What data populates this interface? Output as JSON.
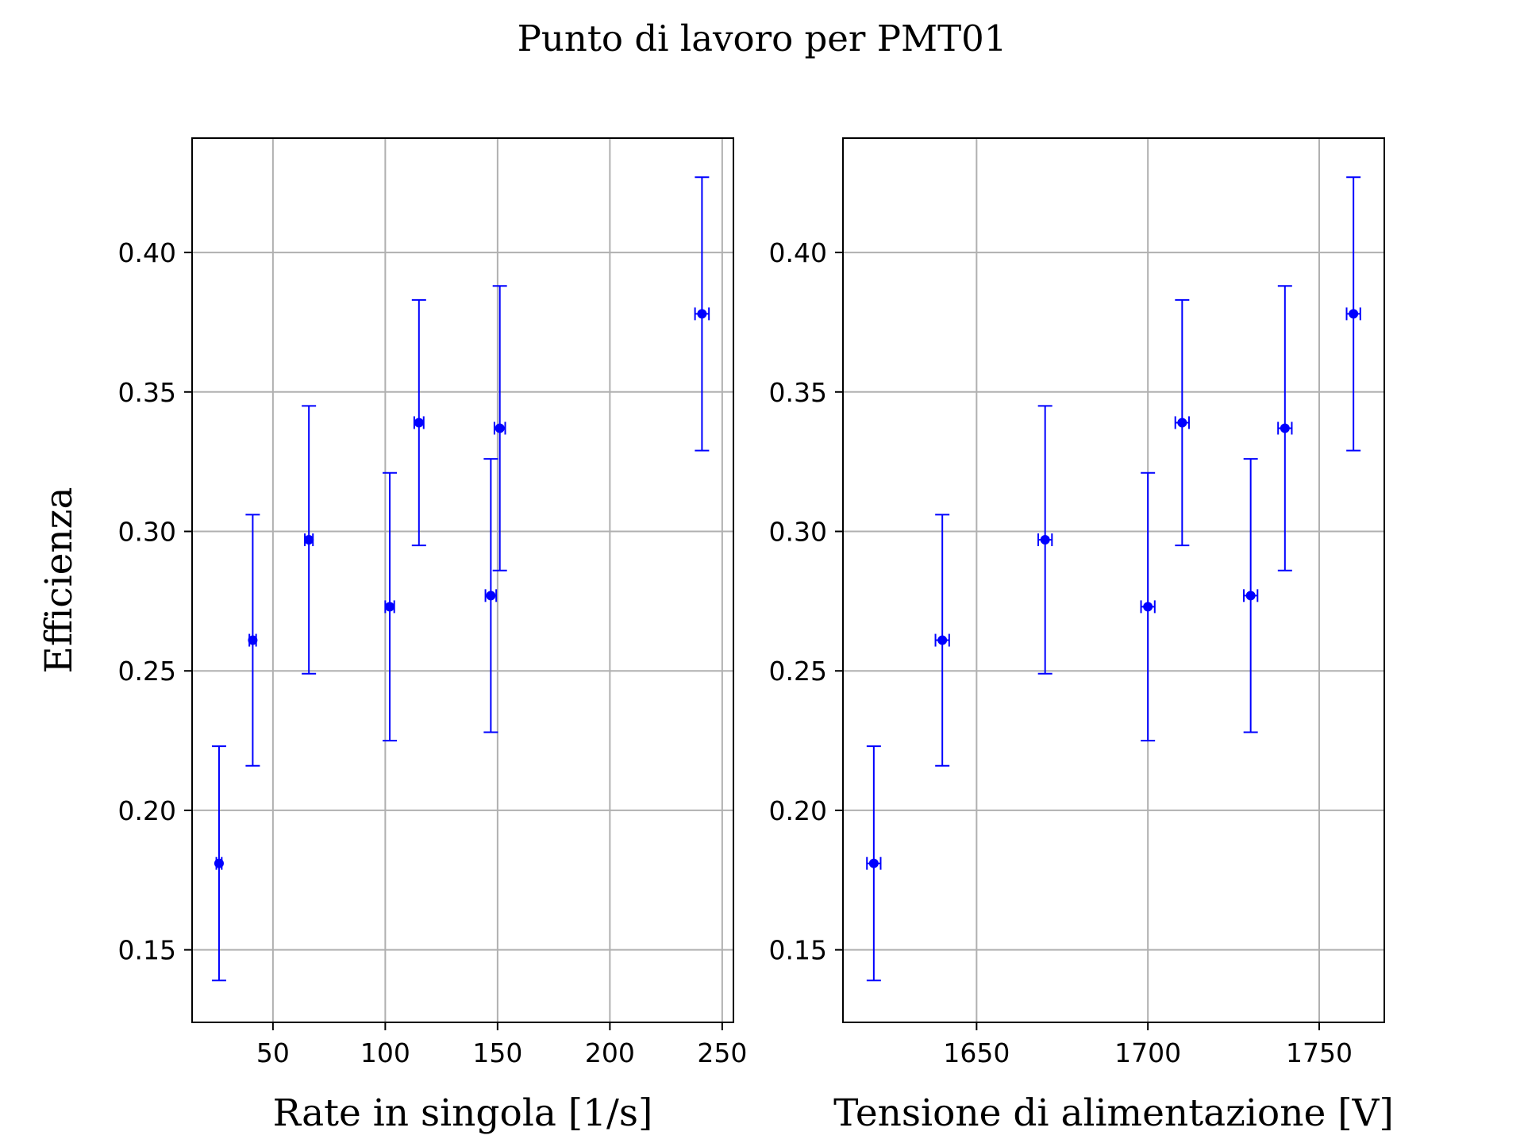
{
  "figure_title": "Punto di lavoro per PMT01",
  "colors": {
    "series": "#0000ff",
    "grid": "#b0b0b0",
    "axes": "#000000"
  },
  "chart_data": [
    {
      "type": "scatter",
      "error_bars": true,
      "xlabel": "Rate in singola [1/s]",
      "ylabel": "Efficienza",
      "xlim": [
        14,
        255
      ],
      "ylim": [
        0.124,
        0.441
      ],
      "xticks": [
        50,
        100,
        150,
        200,
        250
      ],
      "yticks": [
        0.15,
        0.2,
        0.25,
        0.3,
        0.35,
        0.4
      ],
      "grid": true,
      "points": [
        {
          "x": 26,
          "y": 0.181,
          "yerr": 0.042,
          "xerr": 1.2
        },
        {
          "x": 41,
          "y": 0.261,
          "yerr": 0.045,
          "xerr": 1.5
        },
        {
          "x": 66,
          "y": 0.297,
          "yerr": 0.048,
          "xerr": 1.8
        },
        {
          "x": 102,
          "y": 0.273,
          "yerr": 0.048,
          "xerr": 2.0
        },
        {
          "x": 115,
          "y": 0.339,
          "yerr": 0.044,
          "xerr": 2.1
        },
        {
          "x": 147,
          "y": 0.277,
          "yerr": 0.049,
          "xerr": 2.4
        },
        {
          "x": 151,
          "y": 0.337,
          "yerr": 0.051,
          "xerr": 2.4
        },
        {
          "x": 241,
          "y": 0.378,
          "yerr": 0.049,
          "xerr": 3.1
        }
      ]
    },
    {
      "type": "scatter",
      "error_bars": true,
      "xlabel": "Tensione di alimentazione [V]",
      "ylabel": "",
      "xlim": [
        1611,
        1769
      ],
      "ylim": [
        0.124,
        0.441
      ],
      "xticks": [
        1650,
        1700,
        1750
      ],
      "yticks": [
        0.15,
        0.2,
        0.25,
        0.3,
        0.35,
        0.4
      ],
      "grid": true,
      "points": [
        {
          "x": 1620,
          "y": 0.181,
          "yerr": 0.042,
          "xerr": 2
        },
        {
          "x": 1640,
          "y": 0.261,
          "yerr": 0.045,
          "xerr": 2
        },
        {
          "x": 1670,
          "y": 0.297,
          "yerr": 0.048,
          "xerr": 2
        },
        {
          "x": 1700,
          "y": 0.273,
          "yerr": 0.048,
          "xerr": 2
        },
        {
          "x": 1710,
          "y": 0.339,
          "yerr": 0.044,
          "xerr": 2
        },
        {
          "x": 1730,
          "y": 0.277,
          "yerr": 0.049,
          "xerr": 2
        },
        {
          "x": 1740,
          "y": 0.337,
          "yerr": 0.051,
          "xerr": 2
        },
        {
          "x": 1760,
          "y": 0.378,
          "yerr": 0.049,
          "xerr": 2
        }
      ]
    }
  ]
}
